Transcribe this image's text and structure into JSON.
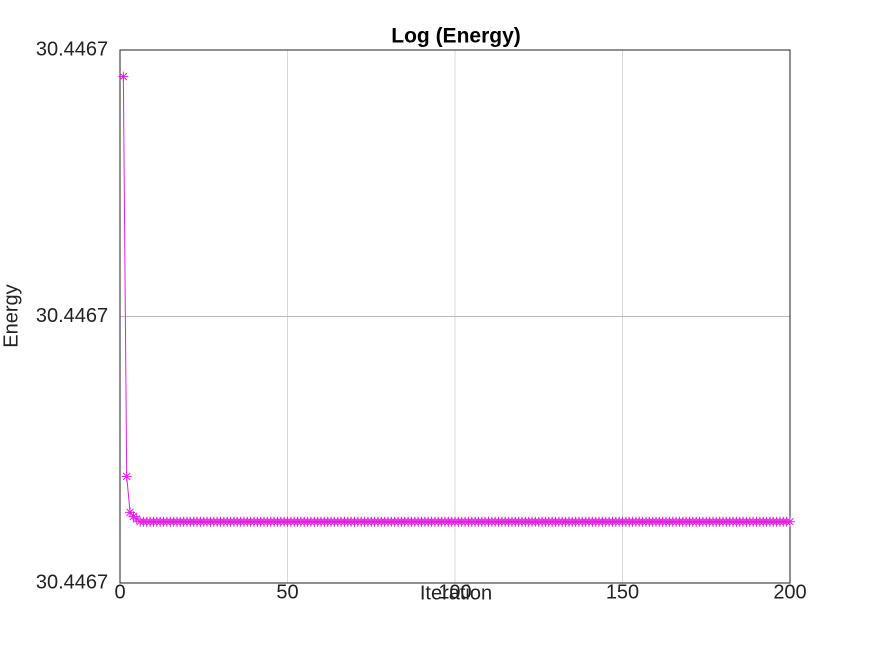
{
  "chart_data": {
    "type": "line",
    "title": "Log (Energy)",
    "x_label": "Iteration",
    "y_label": "Energy",
    "xlim": [
      0,
      200
    ],
    "xticks": [
      0,
      50,
      100,
      150,
      200
    ],
    "ylim": [
      30.4467,
      30.446704
    ],
    "yticks": [
      {
        "value": 30.4467,
        "label": "30.4467"
      },
      {
        "value": 30.446702,
        "label": "30.4467"
      },
      {
        "value": 30.446704,
        "label": "30.4467"
      }
    ],
    "grid": true,
    "marker": "star",
    "x": [
      1,
      2,
      3,
      4,
      5,
      6,
      7,
      8,
      9,
      10,
      11,
      12,
      13,
      14,
      15,
      16,
      17,
      18,
      19,
      20,
      21,
      22,
      23,
      24,
      25,
      26,
      27,
      28,
      29,
      30,
      31,
      32,
      33,
      34,
      35,
      36,
      37,
      38,
      39,
      40,
      41,
      42,
      43,
      44,
      45,
      46,
      47,
      48,
      49,
      50,
      51,
      52,
      53,
      54,
      55,
      56,
      57,
      58,
      59,
      60,
      61,
      62,
      63,
      64,
      65,
      66,
      67,
      68,
      69,
      70,
      71,
      72,
      73,
      74,
      75,
      76,
      77,
      78,
      79,
      80,
      81,
      82,
      83,
      84,
      85,
      86,
      87,
      88,
      89,
      90,
      91,
      92,
      93,
      94,
      95,
      96,
      97,
      98,
      99,
      100,
      101,
      102,
      103,
      104,
      105,
      106,
      107,
      108,
      109,
      110,
      111,
      112,
      113,
      114,
      115,
      116,
      117,
      118,
      119,
      120,
      121,
      122,
      123,
      124,
      125,
      126,
      127,
      128,
      129,
      130,
      131,
      132,
      133,
      134,
      135,
      136,
      137,
      138,
      139,
      140,
      141,
      142,
      143,
      144,
      145,
      146,
      147,
      148,
      149,
      150,
      151,
      152,
      153,
      154,
      155,
      156,
      157,
      158,
      159,
      160,
      161,
      162,
      163,
      164,
      165,
      166,
      167,
      168,
      169,
      170,
      171,
      172,
      173,
      174,
      175,
      176,
      177,
      178,
      179,
      180,
      181,
      182,
      183,
      184,
      185,
      186,
      187,
      188,
      189,
      190,
      191,
      192,
      193,
      194,
      195,
      196,
      197,
      198,
      199,
      200
    ],
    "series": [
      {
        "color": "#e020e0",
        "values": [
          30.4467038,
          30.4467008,
          30.44670053,
          30.4467005,
          30.44670048,
          30.44670046,
          30.44670046,
          30.44670046,
          30.44670046,
          30.44670046,
          30.44670046,
          30.44670046,
          30.44670046,
          30.44670046,
          30.44670046,
          30.44670046,
          30.44670046,
          30.44670046,
          30.44670046,
          30.44670046,
          30.44670046,
          30.44670046,
          30.44670046,
          30.44670046,
          30.44670046,
          30.44670046,
          30.44670046,
          30.44670046,
          30.44670046,
          30.44670046,
          30.44670046,
          30.44670046,
          30.44670046,
          30.44670046,
          30.44670046,
          30.44670046,
          30.44670046,
          30.44670046,
          30.44670046,
          30.44670046,
          30.44670046,
          30.44670046,
          30.44670046,
          30.44670046,
          30.44670046,
          30.44670046,
          30.44670046,
          30.44670046,
          30.44670046,
          30.44670046,
          30.44670046,
          30.44670046,
          30.44670046,
          30.44670046,
          30.44670046,
          30.44670046,
          30.44670046,
          30.44670046,
          30.44670046,
          30.44670046,
          30.44670046,
          30.44670046,
          30.44670046,
          30.44670046,
          30.44670046,
          30.44670046,
          30.44670046,
          30.44670046,
          30.44670046,
          30.44670046,
          30.44670046,
          30.44670046,
          30.44670046,
          30.44670046,
          30.44670046,
          30.44670046,
          30.44670046,
          30.44670046,
          30.44670046,
          30.44670046,
          30.44670046,
          30.44670046,
          30.44670046,
          30.44670046,
          30.44670046,
          30.44670046,
          30.44670046,
          30.44670046,
          30.44670046,
          30.44670046,
          30.44670046,
          30.44670046,
          30.44670046,
          30.44670046,
          30.44670046,
          30.44670046,
          30.44670046,
          30.44670046,
          30.44670046,
          30.44670046,
          30.44670046,
          30.44670046,
          30.44670046,
          30.44670046,
          30.44670046,
          30.44670046,
          30.44670046,
          30.44670046,
          30.44670046,
          30.44670046,
          30.44670046,
          30.44670046,
          30.44670046,
          30.44670046,
          30.44670046,
          30.44670046,
          30.44670046,
          30.44670046,
          30.44670046,
          30.44670046,
          30.44670046,
          30.44670046,
          30.44670046,
          30.44670046,
          30.44670046,
          30.44670046,
          30.44670046,
          30.44670046,
          30.44670046,
          30.44670046,
          30.44670046,
          30.44670046,
          30.44670046,
          30.44670046,
          30.44670046,
          30.44670046,
          30.44670046,
          30.44670046,
          30.44670046,
          30.44670046,
          30.44670046,
          30.44670046,
          30.44670046,
          30.44670046,
          30.44670046,
          30.44670046,
          30.44670046,
          30.44670046,
          30.44670046,
          30.44670046,
          30.44670046,
          30.44670046,
          30.44670046,
          30.44670046,
          30.44670046,
          30.44670046,
          30.44670046,
          30.44670046,
          30.44670046,
          30.44670046,
          30.44670046,
          30.44670046,
          30.44670046,
          30.44670046,
          30.44670046,
          30.44670046,
          30.44670046,
          30.44670046,
          30.44670046,
          30.44670046,
          30.44670046,
          30.44670046,
          30.44670046,
          30.44670046,
          30.44670046,
          30.44670046,
          30.44670046,
          30.44670046,
          30.44670046,
          30.44670046,
          30.44670046,
          30.44670046,
          30.44670046,
          30.44670046,
          30.44670046,
          30.44670046,
          30.44670046,
          30.44670046,
          30.44670046,
          30.44670046,
          30.44670046,
          30.44670046,
          30.44670046,
          30.44670046,
          30.44670046,
          30.44670046,
          30.44670046,
          30.44670046,
          30.44670046,
          30.44670046
        ]
      }
    ]
  }
}
